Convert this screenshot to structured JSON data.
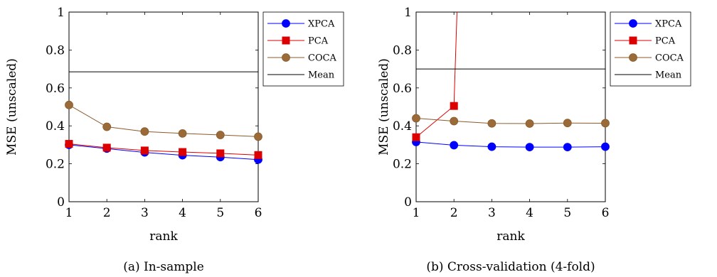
{
  "colors": {
    "xpca": "#0000ff",
    "pca": "#dd0000",
    "coca": "#8b5a2b",
    "coca_fill": "#9a6a38",
    "mean": "#000000"
  },
  "chart_data": [
    {
      "type": "line",
      "caption": "(a) In-sample",
      "xlabel": "rank",
      "ylabel": "MSE (unscaled)",
      "xlim": [
        1,
        6
      ],
      "ylim": [
        0,
        1
      ],
      "x_ticks": [
        "1",
        "2",
        "3",
        "4",
        "5",
        "6"
      ],
      "y_ticks": [
        "0",
        "0.2",
        "0.4",
        "0.6",
        "0.8",
        "1"
      ],
      "grid": false,
      "legend_position": "outside-right",
      "series": [
        {
          "name": "XPCA",
          "key": "xpca",
          "marker": "circle",
          "x": [
            1,
            2,
            3,
            4,
            5,
            6
          ],
          "values": [
            0.3,
            0.28,
            0.26,
            0.245,
            0.235,
            0.222
          ]
        },
        {
          "name": "PCA",
          "key": "pca",
          "marker": "square",
          "x": [
            1,
            2,
            3,
            4,
            5,
            6
          ],
          "values": [
            0.305,
            0.285,
            0.27,
            0.262,
            0.255,
            0.246
          ]
        },
        {
          "name": "COCA",
          "key": "coca",
          "marker": "circle",
          "x": [
            1,
            2,
            3,
            4,
            5,
            6
          ],
          "values": [
            0.51,
            0.395,
            0.37,
            0.36,
            0.352,
            0.343
          ]
        },
        {
          "name": "Mean",
          "key": "mean",
          "marker": "none",
          "x": [
            1,
            6
          ],
          "values": [
            0.685,
            0.685
          ]
        }
      ]
    },
    {
      "type": "line",
      "caption": "(b) Cross-validation (4-fold)",
      "xlabel": "rank",
      "ylabel": "MSE (unscaled)",
      "xlim": [
        1,
        6
      ],
      "ylim": [
        0,
        1
      ],
      "x_ticks": [
        "1",
        "2",
        "3",
        "4",
        "5",
        "6"
      ],
      "y_ticks": [
        "0",
        "0.2",
        "0.4",
        "0.6",
        "0.8",
        "1"
      ],
      "grid": false,
      "legend_position": "outside-right",
      "series": [
        {
          "name": "XPCA",
          "key": "xpca",
          "marker": "circle",
          "x": [
            1,
            2,
            3,
            4,
            5,
            6
          ],
          "values": [
            0.315,
            0.298,
            0.29,
            0.288,
            0.288,
            0.29
          ]
        },
        {
          "name": "PCA",
          "key": "pca",
          "marker": "square",
          "x": [
            1,
            2,
            2.08
          ],
          "values": [
            0.34,
            0.505,
            1.0
          ],
          "marker_count": 2
        },
        {
          "name": "COCA",
          "key": "coca",
          "marker": "circle",
          "x": [
            1,
            2,
            3,
            4,
            5,
            6
          ],
          "values": [
            0.44,
            0.425,
            0.413,
            0.412,
            0.415,
            0.414
          ]
        },
        {
          "name": "Mean",
          "key": "mean",
          "marker": "none",
          "x": [
            1,
            6
          ],
          "values": [
            0.7,
            0.7
          ]
        }
      ]
    }
  ]
}
